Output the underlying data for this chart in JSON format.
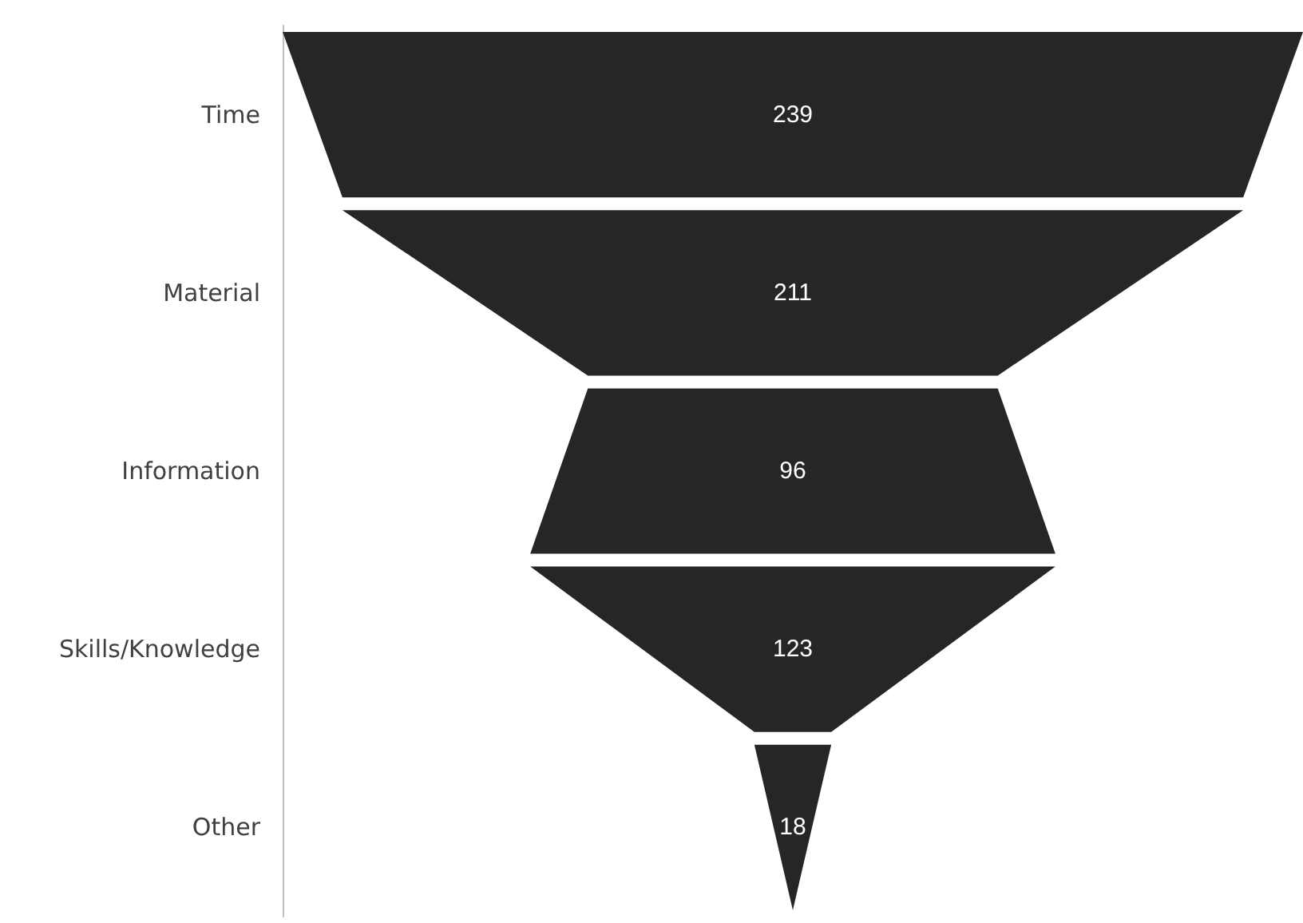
{
  "chart_data": {
    "type": "other",
    "categories": [
      "Time",
      "Material",
      "Information",
      "Skills/Knowledge",
      "Other"
    ],
    "values": [
      239,
      211,
      96,
      123,
      18
    ],
    "color": "#262626",
    "data_labels": true
  }
}
